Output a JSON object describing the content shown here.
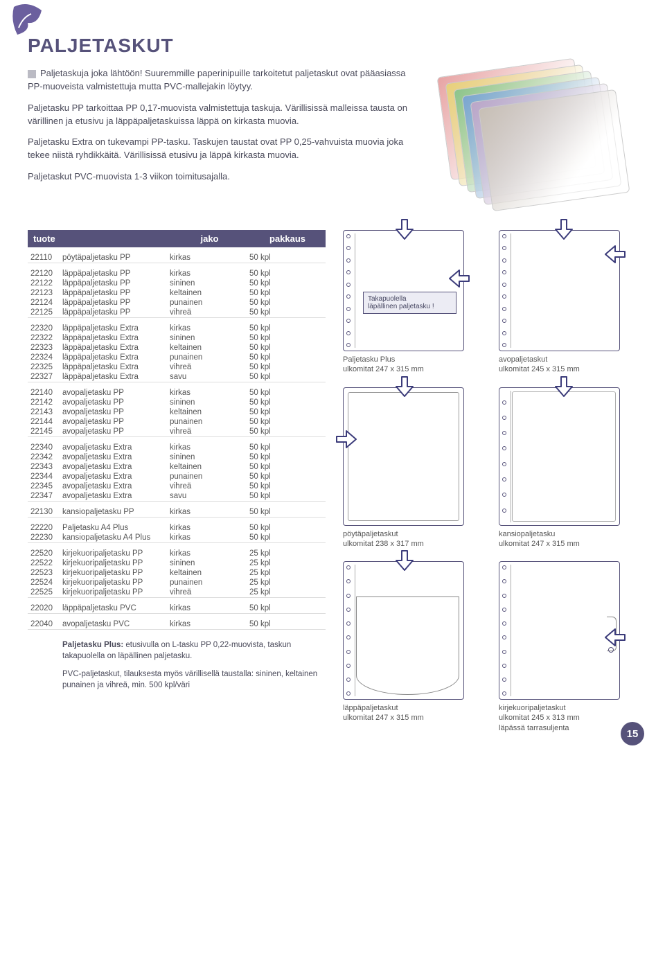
{
  "page_number": "15",
  "title": "PALJETASKUT",
  "intro": {
    "p1": "Paljetaskuja joka lähtöön! Suuremmille paperinipuille tarkoitetut paljetaskut ovat pääasiassa PP-muoveista valmistettuja mutta PVC-mallejakin löytyy.",
    "p2": "Paljetasku PP tarkoittaa PP 0,17-muovista valmistettuja taskuja. Värillisissä malleissa tausta on värillinen ja etusivu ja läppäpaljetaskuissa läppä on kirkasta muovia.",
    "p3": "Paljetasku Extra on tukevampi PP-tasku. Taskujen taustat ovat PP 0,25-vahvuista muovia joka tekee niistä ryhdikkäitä. Värillisissä etusivu ja läppä kirkasta muovia.",
    "p4": "Paljetaskut PVC-muovista 1-3 viikon toimitusajalla."
  },
  "photo_colors": [
    "#e7a3a3",
    "#e7d07a",
    "#8cc48c",
    "#7aa5d0",
    "#bba6c8",
    "#c7bfb5"
  ],
  "table": {
    "head": {
      "c1": "tuote",
      "c2": "jako",
      "c3": "pakkaus"
    },
    "groups": [
      [
        [
          "22110",
          "pöytäpaljetasku PP",
          "kirkas",
          "50 kpl"
        ]
      ],
      [
        [
          "22120",
          "läppäpaljetasku PP",
          "kirkas",
          "50 kpl"
        ],
        [
          "22122",
          "läppäpaljetasku PP",
          "sininen",
          "50 kpl"
        ],
        [
          "22123",
          "läppäpaljetasku PP",
          "keltainen",
          "50 kpl"
        ],
        [
          "22124",
          "läppäpaljetasku PP",
          "punainen",
          "50 kpl"
        ],
        [
          "22125",
          "läppäpaljetasku PP",
          "vihreä",
          "50 kpl"
        ]
      ],
      [
        [
          "22320",
          "läppäpaljetasku Extra",
          "kirkas",
          "50 kpl"
        ],
        [
          "22322",
          "läppäpaljetasku Extra",
          "sininen",
          "50 kpl"
        ],
        [
          "22323",
          "läppäpaljetasku Extra",
          "keltainen",
          "50 kpl"
        ],
        [
          "22324",
          "läppäpaljetasku Extra",
          "punainen",
          "50 kpl"
        ],
        [
          "22325",
          "läppäpaljetasku Extra",
          "vihreä",
          "50 kpl"
        ],
        [
          "22327",
          "läppäpaljetasku Extra",
          "savu",
          "50 kpl"
        ]
      ],
      [
        [
          "22140",
          "avopaljetasku PP",
          "kirkas",
          "50 kpl"
        ],
        [
          "22142",
          "avopaljetasku PP",
          "sininen",
          "50 kpl"
        ],
        [
          "22143",
          "avopaljetasku PP",
          "keltainen",
          "50 kpl"
        ],
        [
          "22144",
          "avopaljetasku PP",
          "punainen",
          "50 kpl"
        ],
        [
          "22145",
          "avopaljetasku PP",
          "vihreä",
          "50 kpl"
        ]
      ],
      [
        [
          "22340",
          "avopaljetasku Extra",
          "kirkas",
          "50 kpl"
        ],
        [
          "22342",
          "avopaljetasku Extra",
          "sininen",
          "50 kpl"
        ],
        [
          "22343",
          "avopaljetasku Extra",
          "keltainen",
          "50 kpl"
        ],
        [
          "22344",
          "avopaljetasku Extra",
          "punainen",
          "50 kpl"
        ],
        [
          "22345",
          "avopaljetasku Extra",
          "vihreä",
          "50 kpl"
        ],
        [
          "22347",
          "avopaljetasku Extra",
          "savu",
          "50 kpl"
        ]
      ],
      [
        [
          "22130",
          "kansiopaljetasku PP",
          "kirkas",
          "50 kpl"
        ]
      ],
      [
        [
          "22220",
          "Paljetasku A4 Plus",
          "kirkas",
          "50 kpl"
        ],
        [
          "22230",
          "kansiopaljetasku A4 Plus",
          "kirkas",
          "50 kpl"
        ]
      ],
      [
        [
          "22520",
          "kirjekuoripaljetasku PP",
          "kirkas",
          "25 kpl"
        ],
        [
          "22522",
          "kirjekuoripaljetasku PP",
          "sininen",
          "25 kpl"
        ],
        [
          "22523",
          "kirjekuoripaljetasku PP",
          "keltainen",
          "25 kpl"
        ],
        [
          "22524",
          "kirjekuoripaljetasku PP",
          "punainen",
          "25 kpl"
        ],
        [
          "22525",
          "kirjekuoripaljetasku PP",
          "vihreä",
          "25 kpl"
        ]
      ],
      [
        [
          "22020",
          "läppäpaljetasku PVC",
          "kirkas",
          "50 kpl"
        ]
      ],
      [
        [
          "22040",
          "avopaljetasku PVC",
          "kirkas",
          "50 kpl"
        ]
      ]
    ]
  },
  "notes": {
    "n1_bold": "Paljetasku Plus:",
    "n1_rest": " etusivulla on L-tasku PP 0,22-muovista, taskun takapuolella on läpällinen paljetasku.",
    "n2": "PVC-paljetaskut, tilauksesta myös värillisellä taustalla: sininen, keltainen punainen ja vihreä, min. 500 kpl/väri"
  },
  "diagrams": {
    "arrow_fill": "#ffffff",
    "arrow_stroke": "#3b3b7a",
    "d1": {
      "callout_l1": "Takapuolella",
      "callout_l2": "läpällinen paljetasku !",
      "cap1": "Paljetasku Plus",
      "cap2": "ulkomitat 247 x 315 mm"
    },
    "d2": {
      "cap1": "avopaljetaskut",
      "cap2": "ulkomitat 245 x 315 mm"
    },
    "d3": {
      "cap1": "pöytäpaljetaskut",
      "cap2": "ulkomitat 238 x 317 mm"
    },
    "d4": {
      "cap1": "kansiopaljetasku",
      "cap2": "ulkomitat 247 x 315 mm"
    },
    "d5": {
      "cap1": "läppäpaljetaskut",
      "cap2": "ulkomitat 247 x 315 mm"
    },
    "d6": {
      "cap1": "kirjekuoripaljetaskut",
      "cap2": "ulkomitat 245 x 313 mm",
      "cap3": "läpässä tarrasuljenta"
    }
  }
}
